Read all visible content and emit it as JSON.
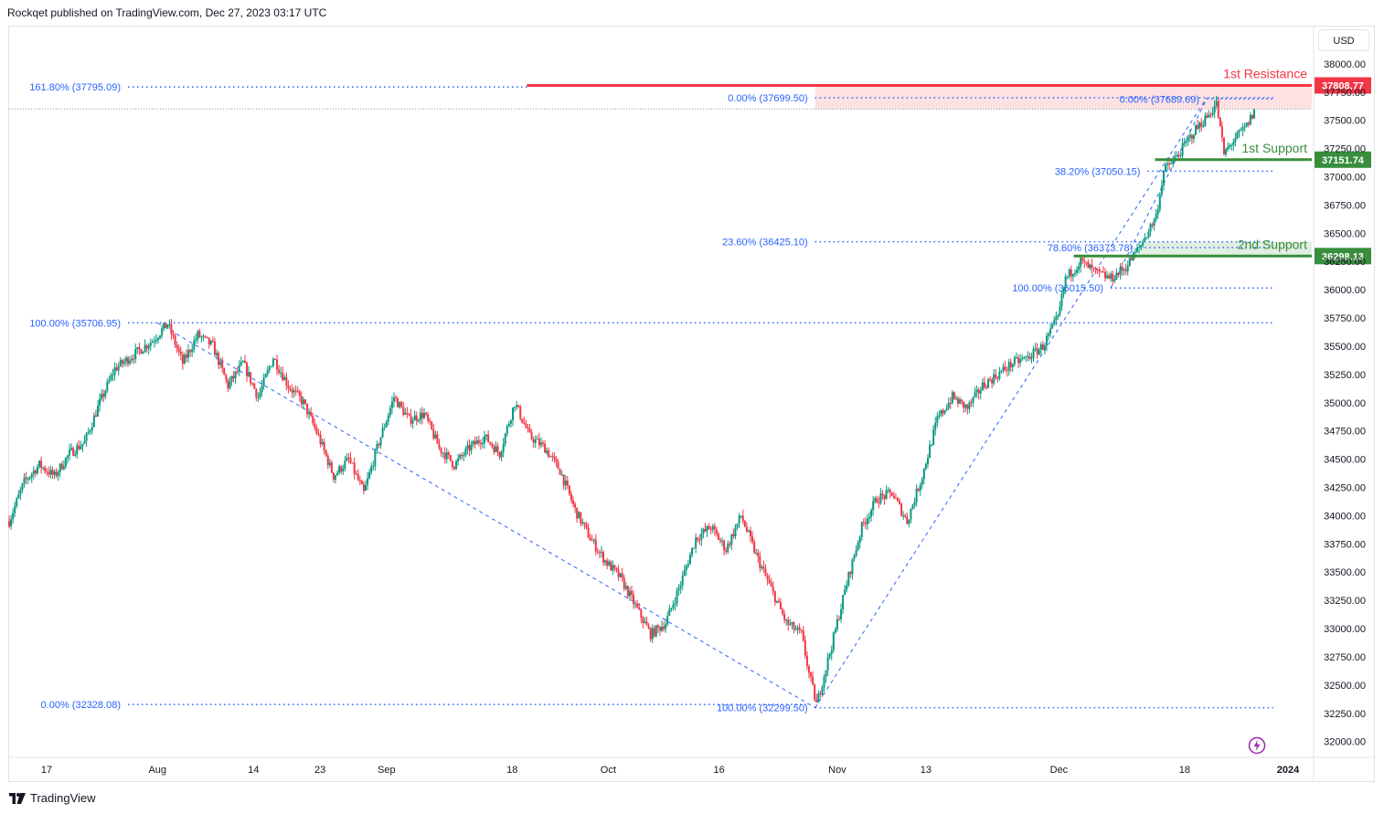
{
  "header": {
    "text": "Rockqet published on TradingView.com, Dec 27, 2023 03:17 UTC"
  },
  "currency": "USD",
  "footer": {
    "brand": "TradingView"
  },
  "colors": {
    "up": "#089981",
    "down": "#f23645",
    "fib": "#2962ff",
    "resistance": "#f23645",
    "support": "#388e3c"
  },
  "chart_data": {
    "type": "candlestick",
    "ylim": [
      31860,
      38080
    ],
    "price_ticks": [
      "38000.00",
      "37750.00",
      "37500.00",
      "37250.00",
      "37000.00",
      "36750.00",
      "36500.00",
      "36250.00",
      "36000.00",
      "35750.00",
      "35500.00",
      "35250.00",
      "35000.00",
      "34750.00",
      "34500.00",
      "34250.00",
      "34000.00",
      "33750.00",
      "33500.00",
      "33250.00",
      "33000.00",
      "32750.00",
      "32500.00",
      "32250.00",
      "32000.00"
    ],
    "date_ticks": [
      {
        "label": "17",
        "date": "2023-07-17"
      },
      {
        "label": "Aug",
        "date": "2023-08-01"
      },
      {
        "label": "14",
        "date": "2023-08-14"
      },
      {
        "label": "23",
        "date": "2023-08-23"
      },
      {
        "label": "Sep",
        "date": "2023-09-01"
      },
      {
        "label": "18",
        "date": "2023-09-18"
      },
      {
        "label": "Oct",
        "date": "2023-10-01"
      },
      {
        "label": "16",
        "date": "2023-10-16"
      },
      {
        "label": "Nov",
        "date": "2023-11-01"
      },
      {
        "label": "13",
        "date": "2023-11-13"
      },
      {
        "label": "Dec",
        "date": "2023-12-01"
      },
      {
        "label": "18",
        "date": "2023-12-18"
      },
      {
        "label": "2024",
        "date": "2024-01-01"
      }
    ],
    "price_path": [
      [
        "2023-07-14",
        33950
      ],
      [
        "2023-07-16",
        34300
      ],
      [
        "2023-07-18",
        34450
      ],
      [
        "2023-07-20",
        34350
      ],
      [
        "2023-07-22",
        34550
      ],
      [
        "2023-07-24",
        34650
      ],
      [
        "2023-07-26",
        35000
      ],
      [
        "2023-07-28",
        35300
      ],
      [
        "2023-07-31",
        35450
      ],
      [
        "2023-08-02",
        35550
      ],
      [
        "2023-08-04",
        35700
      ],
      [
        "2023-08-06",
        35350
      ],
      [
        "2023-08-08",
        35600
      ],
      [
        "2023-08-10",
        35500
      ],
      [
        "2023-08-12",
        35150
      ],
      [
        "2023-08-14",
        35350
      ],
      [
        "2023-08-16",
        35050
      ],
      [
        "2023-08-18",
        35400
      ],
      [
        "2023-08-20",
        35150
      ],
      [
        "2023-08-22",
        35000
      ],
      [
        "2023-08-24",
        34700
      ],
      [
        "2023-08-26",
        34350
      ],
      [
        "2023-08-28",
        34500
      ],
      [
        "2023-08-30",
        34200
      ],
      [
        "2023-09-01",
        34650
      ],
      [
        "2023-09-03",
        35050
      ],
      [
        "2023-09-05",
        34850
      ],
      [
        "2023-09-07",
        34900
      ],
      [
        "2023-09-09",
        34600
      ],
      [
        "2023-09-11",
        34450
      ],
      [
        "2023-09-13",
        34600
      ],
      [
        "2023-09-15",
        34700
      ],
      [
        "2023-09-17",
        34550
      ],
      [
        "2023-09-19",
        35000
      ],
      [
        "2023-09-21",
        34700
      ],
      [
        "2023-09-23",
        34600
      ],
      [
        "2023-09-25",
        34400
      ],
      [
        "2023-09-27",
        34050
      ],
      [
        "2023-09-29",
        33800
      ],
      [
        "2023-10-01",
        33600
      ],
      [
        "2023-10-03",
        33450
      ],
      [
        "2023-10-05",
        33200
      ],
      [
        "2023-10-07",
        32950
      ],
      [
        "2023-10-09",
        33050
      ],
      [
        "2023-10-11",
        33400
      ],
      [
        "2023-10-13",
        33800
      ],
      [
        "2023-10-15",
        33900
      ],
      [
        "2023-10-17",
        33700
      ],
      [
        "2023-10-19",
        34000
      ],
      [
        "2023-10-21",
        33650
      ],
      [
        "2023-10-23",
        33350
      ],
      [
        "2023-10-25",
        33050
      ],
      [
        "2023-10-27",
        32950
      ],
      [
        "2023-10-28",
        32600
      ],
      [
        "2023-10-29",
        32330
      ],
      [
        "2023-10-31",
        32850
      ],
      [
        "2023-11-02",
        33400
      ],
      [
        "2023-11-04",
        33900
      ],
      [
        "2023-11-06",
        34150
      ],
      [
        "2023-11-08",
        34200
      ],
      [
        "2023-11-10",
        33950
      ],
      [
        "2023-11-12",
        34350
      ],
      [
        "2023-11-14",
        34850
      ],
      [
        "2023-11-16",
        35050
      ],
      [
        "2023-11-18",
        34950
      ],
      [
        "2023-11-20",
        35150
      ],
      [
        "2023-11-22",
        35250
      ],
      [
        "2023-11-24",
        35350
      ],
      [
        "2023-11-26",
        35400
      ],
      [
        "2023-11-28",
        35500
      ],
      [
        "2023-11-30",
        35750
      ],
      [
        "2023-12-01",
        36100
      ],
      [
        "2023-12-03",
        36250
      ],
      [
        "2023-12-05",
        36150
      ],
      [
        "2023-12-07",
        36100
      ],
      [
        "2023-12-09",
        36200
      ],
      [
        "2023-12-11",
        36400
      ],
      [
        "2023-12-13",
        36650
      ],
      [
        "2023-12-14",
        37050
      ],
      [
        "2023-12-16",
        37200
      ],
      [
        "2023-12-18",
        37400
      ],
      [
        "2023-12-20",
        37550
      ],
      [
        "2023-12-21",
        37650
      ],
      [
        "2023-12-22",
        37200
      ],
      [
        "2023-12-23",
        37300
      ],
      [
        "2023-12-25",
        37450
      ],
      [
        "2023-12-26",
        37580
      ]
    ],
    "fib_lines": [
      {
        "label": "161.80% (37795.09)",
        "price": 37795.09,
        "from": "2023-07-14",
        "to": "2023-09-20"
      },
      {
        "label": "100.00% (35706.95)",
        "price": 35706.95,
        "from": "2023-07-14",
        "to": "2023-12-30"
      },
      {
        "label": "0.00% (32328.08)",
        "price": 32328.08,
        "from": "2023-07-14",
        "to": "2023-10-28"
      },
      {
        "label": "0.00% (37699.50)",
        "price": 37699.5,
        "from": "2023-10-29",
        "to": "2023-12-30"
      },
      {
        "label": "38.20% (37050.15)",
        "price": 37050.15,
        "from": "2023-12-13",
        "to": "2023-12-30"
      },
      {
        "label": "23.60% (36425.10)",
        "price": 36425.1,
        "from": "2023-10-29",
        "to": "2023-12-30"
      },
      {
        "label": "100.00% (32299.50)",
        "price": 32299.5,
        "from": "2023-10-29",
        "to": "2023-12-30"
      },
      {
        "label": "0.00% (37689.69)",
        "price": 37689.69,
        "from": "2023-12-21",
        "to": "2023-12-30"
      },
      {
        "label": "78.60% (36373.78)",
        "price": 36373.78,
        "from": "2023-12-12",
        "to": "2023-12-30"
      },
      {
        "label": "100.00% (36015.50)",
        "price": 36015.5,
        "from": "2023-12-08",
        "to": "2023-12-30"
      }
    ],
    "trend_lines": [
      {
        "from": [
          "2023-08-01",
          35706.95
        ],
        "to": [
          "2023-10-29",
          32299.5
        ]
      },
      {
        "from": [
          "2023-10-29",
          32299.5
        ],
        "to": [
          "2023-12-21",
          37699.5
        ]
      },
      {
        "from": [
          "2023-12-08",
          36015.5
        ],
        "to": [
          "2023-12-21",
          37689.69
        ]
      }
    ],
    "levels": [
      {
        "label": "1st Resistance",
        "price": 37808.77,
        "price_label": "37808.77",
        "kind": "resistance",
        "from": "2023-09-20"
      },
      {
        "label": "1st Support",
        "price": 37151.74,
        "price_label": "37151.74",
        "kind": "support",
        "from": "2023-12-14"
      },
      {
        "label": "2nd Support",
        "price": 36298.13,
        "price_label": "36298.13",
        "kind": "support",
        "from": "2023-12-03"
      }
    ],
    "zones": [
      {
        "price_top": 37808.77,
        "price_bottom": 37600,
        "from": "2023-10-29",
        "kind": "resistance"
      },
      {
        "price_top": 36425.1,
        "price_bottom": 36298.13,
        "from": "2023-12-12",
        "kind": "support"
      }
    ]
  }
}
